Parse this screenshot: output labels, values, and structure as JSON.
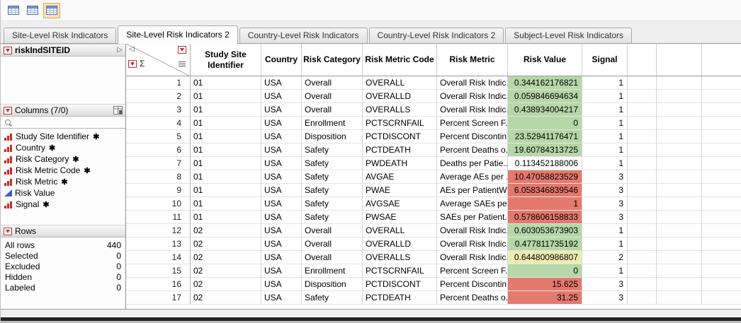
{
  "colors": {
    "green": "#b6d7a8",
    "red": "#e4796d",
    "yellow": "#efecb0"
  },
  "toolbar": {
    "icons": [
      {
        "name": "data-table-icon",
        "active": false
      },
      {
        "name": "data-table-panel-icon",
        "active": false
      },
      {
        "name": "data-table-highlight-icon",
        "active": true
      }
    ]
  },
  "tabs": [
    {
      "label": "Site-Level Risk Indicators",
      "active": false
    },
    {
      "label": "Site-Level Risk Indicators 2",
      "active": true
    },
    {
      "label": "Country-Level Risk Indicators",
      "active": false
    },
    {
      "label": "Country-Level Risk Indicators 2",
      "active": false
    },
    {
      "label": "Subject-Level Risk Indicators",
      "active": false
    }
  ],
  "sidebar": {
    "table_panel": {
      "title": "riskIndSITEID"
    },
    "columns_panel": {
      "title": "Columns (7/0)",
      "items": [
        {
          "label": "Study Site Identifier",
          "type": "nominal",
          "starred": true
        },
        {
          "label": "Country",
          "type": "nominal",
          "starred": true
        },
        {
          "label": "Risk Category",
          "type": "nominal",
          "starred": true
        },
        {
          "label": "Risk Metric Code",
          "type": "nominal",
          "starred": true
        },
        {
          "label": "Risk Metric",
          "type": "nominal",
          "starred": true
        },
        {
          "label": "Risk Value",
          "type": "continuous",
          "starred": false
        },
        {
          "label": "Signal",
          "type": "nominal",
          "starred": true
        }
      ]
    },
    "rows_panel": {
      "title": "Rows",
      "stats": [
        {
          "label": "All rows",
          "value": "440"
        },
        {
          "label": "Selected",
          "value": "0"
        },
        {
          "label": "Excluded",
          "value": "0"
        },
        {
          "label": "Hidden",
          "value": "0"
        },
        {
          "label": "Labeled",
          "value": "0"
        }
      ]
    }
  },
  "grid": {
    "corner_sigma": "Σ",
    "columns": [
      "Study Site Identifier",
      "Country",
      "Risk Category",
      "Risk Metric Code",
      "Risk Metric",
      "Risk Value",
      "Signal",
      "",
      "",
      ""
    ],
    "rows": [
      {
        "n": "1",
        "cells": [
          "01",
          "USA",
          "Overall",
          "OVERALL",
          "Overall Risk Indic...",
          "0.344162176821",
          "1"
        ],
        "color": "green"
      },
      {
        "n": "2",
        "cells": [
          "01",
          "USA",
          "Overall",
          "OVERALLD",
          "Overall Risk Indic...",
          "0.059846694634",
          "1"
        ],
        "color": "green"
      },
      {
        "n": "3",
        "cells": [
          "01",
          "USA",
          "Overall",
          "OVERALLS",
          "Overall Risk Indic...",
          "0.438934004217",
          "1"
        ],
        "color": "green"
      },
      {
        "n": "4",
        "cells": [
          "01",
          "USA",
          "Enrollment",
          "PCTSCRNFAIL",
          "Percent Screen F...",
          "0",
          "1"
        ],
        "color": "green"
      },
      {
        "n": "5",
        "cells": [
          "01",
          "USA",
          "Disposition",
          "PCTDISCONT",
          "Percent Discontin...",
          "23.52941176471",
          "1"
        ],
        "color": "green"
      },
      {
        "n": "6",
        "cells": [
          "01",
          "USA",
          "Safety",
          "PCTDEATH",
          "Percent Deaths o...",
          "19.60784313725",
          "1"
        ],
        "color": "green"
      },
      {
        "n": "7",
        "cells": [
          "01",
          "USA",
          "Safety",
          "PWDEATH",
          "Deaths per Patie...",
          "0.113452188006",
          "1"
        ],
        "color": "none"
      },
      {
        "n": "8",
        "cells": [
          "01",
          "USA",
          "Safety",
          "AVGAE",
          "Average AEs per ...",
          "10.47058823529",
          "3"
        ],
        "color": "red"
      },
      {
        "n": "9",
        "cells": [
          "01",
          "USA",
          "Safety",
          "PWAE",
          "AEs per PatientW...",
          "6.058346839546",
          "3"
        ],
        "color": "red"
      },
      {
        "n": "10",
        "cells": [
          "01",
          "USA",
          "Safety",
          "AVGSAE",
          "Average SAEs per...",
          "1",
          "3"
        ],
        "color": "red"
      },
      {
        "n": "11",
        "cells": [
          "01",
          "USA",
          "Safety",
          "PWSAE",
          "SAEs per Patient...",
          "0.578606158833",
          "3"
        ],
        "color": "red"
      },
      {
        "n": "12",
        "cells": [
          "02",
          "USA",
          "Overall",
          "OVERALL",
          "Overall Risk Indic...",
          "0.603053673903",
          "1"
        ],
        "color": "green"
      },
      {
        "n": "13",
        "cells": [
          "02",
          "USA",
          "Overall",
          "OVERALLD",
          "Overall Risk Indic...",
          "0.477811735192",
          "1"
        ],
        "color": "green"
      },
      {
        "n": "14",
        "cells": [
          "02",
          "USA",
          "Overall",
          "OVERALLS",
          "Overall Risk Indic...",
          "0.644800986807",
          "2"
        ],
        "color": "yellow"
      },
      {
        "n": "15",
        "cells": [
          "02",
          "USA",
          "Enrollment",
          "PCTSCRNFAIL",
          "Percent Screen F...",
          "0",
          "1"
        ],
        "color": "green"
      },
      {
        "n": "16",
        "cells": [
          "02",
          "USA",
          "Disposition",
          "PCTDISCONT",
          "Percent Discontin...",
          "15.625",
          "3"
        ],
        "color": "red"
      },
      {
        "n": "17",
        "cells": [
          "02",
          "USA",
          "Safety",
          "PCTDEATH",
          "Percent Deaths o...",
          "31.25",
          "3"
        ],
        "color": "red"
      }
    ]
  }
}
